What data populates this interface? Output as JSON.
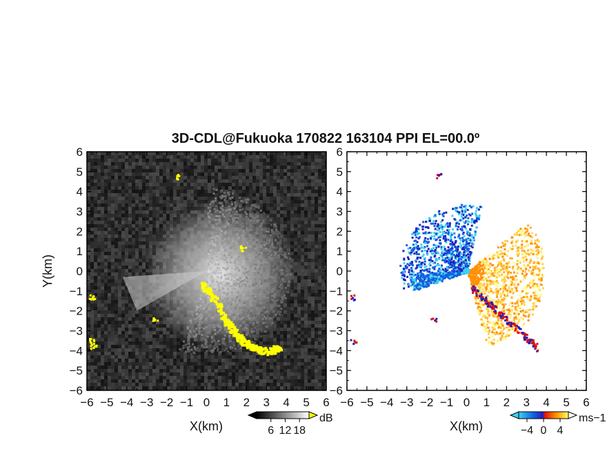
{
  "title": "3D-CDL@Fukuoka 170822 163104 PPI EL=00.0º",
  "chart_data": [
    {
      "type": "heatmap",
      "panel": "reflectivity",
      "xlabel": "X(km)",
      "ylabel": "Y(km)",
      "xlim": [
        -6,
        6
      ],
      "ylim": [
        -6,
        6
      ],
      "xticks": [
        "−6",
        "−5",
        "−4",
        "−3",
        "−2",
        "−1",
        "0",
        "1",
        "2",
        "3",
        "4",
        "5",
        "6"
      ],
      "yticks": [
        "6",
        "5",
        "4",
        "3",
        "2",
        "1",
        "0",
        "−1",
        "−2",
        "−3",
        "−4",
        "−5",
        "−6"
      ],
      "colorbar": {
        "unit": "dB",
        "tick_labels": [
          "6",
          "12",
          "18"
        ],
        "ticks": [
          6,
          12,
          18
        ],
        "range": [
          0,
          22
        ],
        "colormap": [
          "#000000",
          "#ffffff"
        ],
        "over_color": "#ffff00"
      },
      "features": {
        "echo_sector_deg": [
          130,
          200
        ],
        "strong_echo_color": "#ffff00",
        "strong_echo_band": [
          [
            -0.2,
            -0.6
          ],
          [
            0.5,
            -1.6
          ],
          [
            1.0,
            -2.6
          ],
          [
            1.6,
            -3.3
          ],
          [
            2.2,
            -3.8
          ],
          [
            3.0,
            -4.0
          ],
          [
            3.6,
            -3.8
          ]
        ]
      }
    },
    {
      "type": "heatmap",
      "panel": "doppler_velocity",
      "xlabel": "X(km)",
      "xlim": [
        -6,
        6
      ],
      "ylim": [
        -6,
        6
      ],
      "xticks": [
        "−6",
        "−5",
        "−4",
        "−3",
        "−2",
        "−1",
        "0",
        "1",
        "2",
        "3",
        "4",
        "5",
        "6"
      ],
      "yticks": [
        "6",
        "5",
        "4",
        "3",
        "2",
        "1",
        "0",
        "−1",
        "−2",
        "−3",
        "−4",
        "−5",
        "−6"
      ],
      "colorbar": {
        "unit": "ms−1",
        "tick_labels": [
          "−4",
          "0",
          "4"
        ],
        "ticks": [
          -4,
          0,
          4
        ],
        "range": [
          -6,
          6
        ],
        "colormap": [
          "#3fd0f0",
          "#1060e0",
          "#2020c0",
          "#e01010",
          "#ff9000",
          "#ffffff"
        ],
        "under_color": "#3fd0f0",
        "over_color": "#ffffff"
      },
      "features": {
        "negative_sector_deg": [
          160,
          260
        ],
        "positive_sector_deg": [
          -90,
          45
        ]
      }
    }
  ]
}
